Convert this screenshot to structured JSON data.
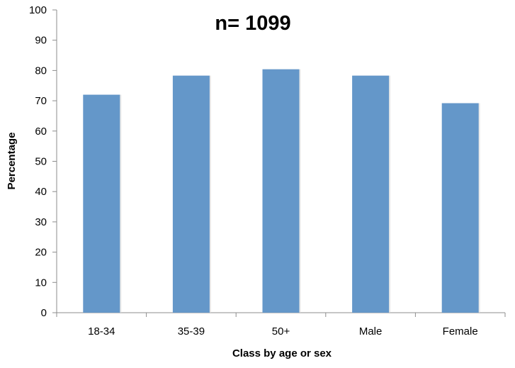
{
  "chart_data": {
    "type": "bar",
    "title": "n= 1099",
    "xlabel": "Class by age or sex",
    "ylabel": "Percentage",
    "categories": [
      "18-34",
      "35-39",
      "50+",
      "Male",
      "Female"
    ],
    "values": [
      72,
      78.3,
      80.4,
      78.3,
      69.2
    ],
    "ylim": [
      0,
      100
    ],
    "yticks": [
      "0",
      "10",
      "20",
      "30",
      "40",
      "50",
      "60",
      "70",
      "80",
      "90",
      "100"
    ],
    "grid": false,
    "legend": "none",
    "bar_color": "#6497C9",
    "axis_color": "#8C8C8C"
  }
}
